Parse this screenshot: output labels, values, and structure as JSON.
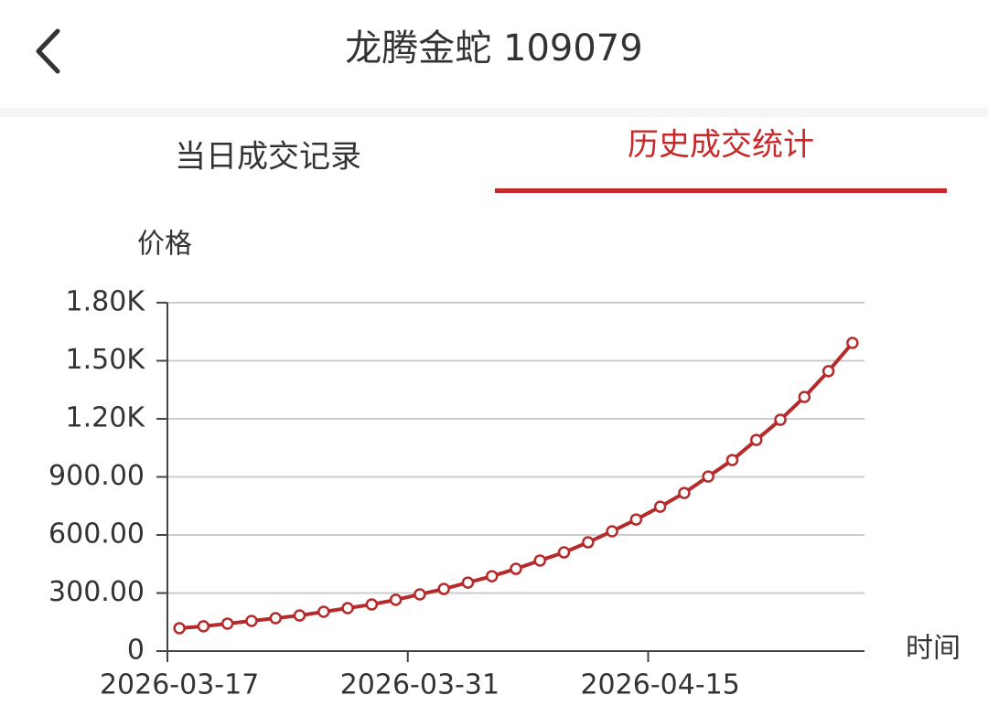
{
  "header": {
    "title": "龙腾金蛇 109079"
  },
  "tabs": [
    "当日成交记录",
    "历史成交统计"
  ],
  "active_tab": 1,
  "chart_data": {
    "type": "line",
    "y_label": "价格",
    "x_label": "时间",
    "categories": [
      "2026-03-17",
      null,
      null,
      null,
      null,
      null,
      null,
      null,
      null,
      null,
      "2026-03-31",
      null,
      null,
      null,
      null,
      null,
      null,
      null,
      null,
      null,
      "2026-04-15",
      null,
      null,
      null,
      null,
      null,
      null,
      null,
      null
    ],
    "values": [
      118,
      128,
      142,
      156,
      170,
      184,
      203,
      222,
      241,
      265,
      293,
      321,
      354,
      387,
      425,
      468,
      510,
      562,
      619,
      680,
      746,
      817,
      902,
      987,
      1091,
      1195,
      1313,
      1446,
      1592
    ],
    "color": "#b52a2a",
    "ylim": [
      0,
      1800
    ],
    "yticks": [
      0,
      {
        "value": 300,
        "label": "300.00"
      },
      {
        "value": 600,
        "label": "600.00"
      },
      {
        "value": 900,
        "label": "900.00"
      },
      {
        "value": 1200,
        "label": "1.20K"
      },
      {
        "value": 1500,
        "label": "1.50K"
      },
      {
        "value": 1800,
        "label": "1.80K"
      }
    ],
    "grid": true
  }
}
